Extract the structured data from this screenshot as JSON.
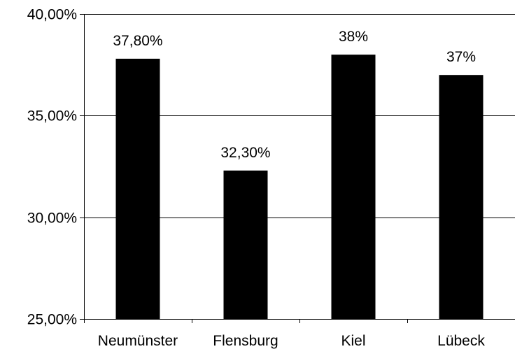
{
  "chart_data": {
    "type": "bar",
    "categories": [
      "Neumünster",
      "Flensburg",
      "Kiel",
      "Lübeck"
    ],
    "values": [
      37.8,
      32.3,
      38.0,
      37.0
    ],
    "data_labels": [
      "37,80%",
      "32,30%",
      "38%",
      "37%"
    ],
    "ylim": [
      25,
      40
    ],
    "yticks": [
      25,
      30,
      35,
      40
    ],
    "ytick_labels": [
      "25,00%",
      "30,00%",
      "35,00%",
      "40,00%"
    ],
    "grid": "horizontal",
    "legend": "none",
    "title": "",
    "xlabel": "",
    "ylabel": ""
  },
  "colors": {
    "bar": "#000000",
    "axis": "#000000",
    "grid": "#000000",
    "background": "#ffffff"
  }
}
